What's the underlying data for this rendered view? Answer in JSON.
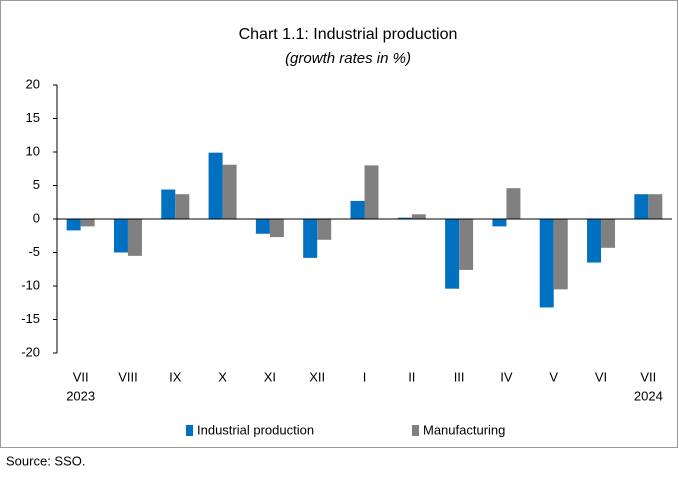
{
  "chart_data": {
    "type": "bar",
    "title": "Chart 1.1: Industrial production",
    "subtitle": "(growth rates in %)",
    "categories": [
      "VII",
      "VIII",
      "IX",
      "X",
      "XI",
      "XII",
      "I",
      "II",
      "III",
      "IV",
      "V",
      "VI",
      "VII"
    ],
    "year_labels": [
      "2023",
      null,
      null,
      null,
      null,
      null,
      null,
      null,
      null,
      null,
      null,
      null,
      "2024"
    ],
    "series": [
      {
        "name": "Industrial production",
        "color": "#0070c0",
        "values": [
          -1.7,
          -5.0,
          4.4,
          9.9,
          -2.2,
          -5.8,
          2.7,
          0.2,
          -10.4,
          -1.1,
          -13.2,
          -6.5,
          3.7
        ]
      },
      {
        "name": "Manufacturing",
        "color": "#808080",
        "values": [
          -1.1,
          -5.5,
          3.7,
          8.1,
          -2.7,
          -3.1,
          8.0,
          0.7,
          -7.6,
          4.6,
          -10.5,
          -4.3,
          3.7
        ]
      }
    ],
    "ylim": [
      -20,
      20
    ],
    "yticks": [
      -20,
      -15,
      -10,
      -5,
      0,
      5,
      10,
      15,
      20
    ],
    "grid": false,
    "source": "Source: SSO."
  }
}
